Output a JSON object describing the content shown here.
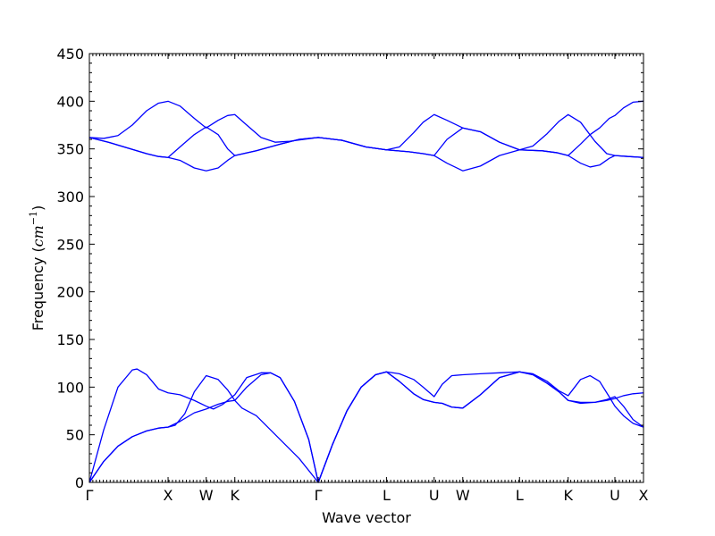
{
  "chart_data": {
    "type": "line",
    "title": "",
    "xlabel": "Wave vector",
    "ylabel": "Frequency ($cm^{-1}$)",
    "ylabel_parts": {
      "text": "Frequency (",
      "math": "cm",
      "sup": "−1",
      "close": ")"
    },
    "ylim": [
      0,
      450
    ],
    "yticks": [
      0,
      50,
      100,
      150,
      200,
      250,
      300,
      350,
      400,
      450
    ],
    "xlim": [
      0,
      11.62
    ],
    "kpoints": [
      {
        "label": "Γ",
        "x": 0
      },
      {
        "label": "X",
        "x": 1.65
      },
      {
        "label": "W",
        "x": 2.45
      },
      {
        "label": "K",
        "x": 3.05
      },
      {
        "label": "Γ",
        "x": 4.8
      },
      {
        "label": "L",
        "x": 6.23
      },
      {
        "label": "U",
        "x": 7.23
      },
      {
        "label": "W",
        "x": 7.83
      },
      {
        "label": "L",
        "x": 9.02
      },
      {
        "label": "K",
        "x": 10.04
      },
      {
        "label": "U",
        "x": 11.02
      },
      {
        "label": "X",
        "x": 11.62
      }
    ],
    "grid": false,
    "line_color": "#0000ff",
    "series": [
      {
        "values": [
          [
            0,
            0
          ],
          [
            0.3,
            22
          ],
          [
            0.6,
            38
          ],
          [
            0.9,
            48
          ],
          [
            1.2,
            54
          ],
          [
            1.45,
            57
          ],
          [
            1.65,
            58
          ],
          [
            1.8,
            60
          ],
          [
            2.0,
            72
          ],
          [
            2.2,
            95
          ],
          [
            2.45,
            112
          ],
          [
            2.7,
            108
          ],
          [
            2.9,
            97
          ],
          [
            3.05,
            86
          ],
          [
            3.2,
            78
          ],
          [
            3.5,
            70
          ],
          [
            3.8,
            55
          ],
          [
            4.1,
            40
          ],
          [
            4.4,
            25
          ],
          [
            4.8,
            0
          ],
          [
            5.1,
            40
          ],
          [
            5.4,
            75
          ],
          [
            5.7,
            100
          ],
          [
            6.0,
            113
          ],
          [
            6.23,
            116
          ],
          [
            6.5,
            114
          ],
          [
            6.8,
            108
          ],
          [
            7.0,
            100
          ],
          [
            7.23,
            90
          ],
          [
            7.4,
            103
          ],
          [
            7.6,
            112
          ],
          [
            7.83,
            113
          ],
          [
            8.2,
            114
          ],
          [
            8.6,
            115
          ],
          [
            9.02,
            116
          ],
          [
            9.3,
            113
          ],
          [
            9.6,
            104
          ],
          [
            9.85,
            95
          ],
          [
            10.04,
            86
          ],
          [
            10.3,
            83
          ],
          [
            10.6,
            84
          ],
          [
            10.85,
            86
          ],
          [
            11.02,
            88
          ],
          [
            11.2,
            91
          ],
          [
            11.4,
            93
          ],
          [
            11.62,
            94
          ]
        ]
      },
      {
        "values": [
          [
            0,
            0
          ],
          [
            0.3,
            22
          ],
          [
            0.6,
            38
          ],
          [
            0.9,
            48
          ],
          [
            1.2,
            54
          ],
          [
            1.45,
            57
          ],
          [
            1.65,
            58
          ],
          [
            1.9,
            64
          ],
          [
            2.2,
            73
          ],
          [
            2.45,
            77
          ],
          [
            2.7,
            82
          ],
          [
            2.9,
            85
          ],
          [
            3.05,
            86
          ],
          [
            3.3,
            100
          ],
          [
            3.6,
            113
          ],
          [
            3.8,
            115
          ],
          [
            4.0,
            110
          ],
          [
            4.3,
            85
          ],
          [
            4.6,
            45
          ],
          [
            4.8,
            0
          ],
          [
            5.1,
            40
          ],
          [
            5.4,
            75
          ],
          [
            5.7,
            100
          ],
          [
            6.0,
            113
          ],
          [
            6.23,
            116
          ],
          [
            6.5,
            106
          ],
          [
            6.8,
            93
          ],
          [
            7.0,
            87
          ],
          [
            7.23,
            84
          ],
          [
            7.4,
            83
          ],
          [
            7.6,
            79
          ],
          [
            7.83,
            78
          ],
          [
            8.2,
            92
          ],
          [
            8.6,
            110
          ],
          [
            9.02,
            116
          ],
          [
            9.3,
            113
          ],
          [
            9.6,
            104
          ],
          [
            9.85,
            95
          ],
          [
            10.04,
            86
          ],
          [
            10.3,
            84
          ],
          [
            10.6,
            84
          ],
          [
            10.85,
            87
          ],
          [
            11.02,
            90
          ],
          [
            11.2,
            80
          ],
          [
            11.4,
            66
          ],
          [
            11.62,
            58
          ]
        ]
      },
      {
        "values": [
          [
            0,
            0
          ],
          [
            0.3,
            55
          ],
          [
            0.6,
            100
          ],
          [
            0.9,
            118
          ],
          [
            1.0,
            119
          ],
          [
            1.2,
            113
          ],
          [
            1.45,
            98
          ],
          [
            1.65,
            94
          ],
          [
            1.9,
            92
          ],
          [
            2.2,
            86
          ],
          [
            2.45,
            80
          ],
          [
            2.6,
            77
          ],
          [
            2.8,
            82
          ],
          [
            3.05,
            92
          ],
          [
            3.3,
            110
          ],
          [
            3.6,
            115
          ],
          [
            3.8,
            115
          ],
          [
            4.0,
            110
          ],
          [
            4.3,
            85
          ],
          [
            4.6,
            45
          ],
          [
            4.8,
            0
          ],
          [
            5.1,
            40
          ],
          [
            5.4,
            75
          ],
          [
            5.7,
            100
          ],
          [
            6.0,
            113
          ],
          [
            6.23,
            116
          ],
          [
            6.5,
            106
          ],
          [
            6.8,
            93
          ],
          [
            7.0,
            87
          ],
          [
            7.23,
            84
          ],
          [
            7.4,
            83
          ],
          [
            7.6,
            79
          ],
          [
            7.83,
            78
          ],
          [
            8.2,
            92
          ],
          [
            8.6,
            110
          ],
          [
            9.02,
            116
          ],
          [
            9.3,
            114
          ],
          [
            9.6,
            106
          ],
          [
            9.85,
            96
          ],
          [
            10.04,
            91
          ],
          [
            10.3,
            108
          ],
          [
            10.5,
            112
          ],
          [
            10.7,
            106
          ],
          [
            10.9,
            90
          ],
          [
            11.02,
            80
          ],
          [
            11.2,
            70
          ],
          [
            11.4,
            62
          ],
          [
            11.62,
            58
          ]
        ]
      },
      {
        "values": [
          [
            0,
            362
          ],
          [
            0.4,
            357
          ],
          [
            0.8,
            351
          ],
          [
            1.2,
            345
          ],
          [
            1.45,
            342
          ],
          [
            1.65,
            341
          ],
          [
            1.9,
            338
          ],
          [
            2.2,
            330
          ],
          [
            2.45,
            327
          ],
          [
            2.7,
            330
          ],
          [
            2.9,
            338
          ],
          [
            3.05,
            343
          ],
          [
            3.5,
            348
          ],
          [
            4.0,
            355
          ],
          [
            4.4,
            360
          ],
          [
            4.8,
            362
          ],
          [
            5.3,
            359
          ],
          [
            5.8,
            352
          ],
          [
            6.23,
            349
          ],
          [
            6.7,
            347
          ],
          [
            7.0,
            345
          ],
          [
            7.23,
            343
          ],
          [
            7.5,
            335
          ],
          [
            7.83,
            327
          ],
          [
            8.2,
            332
          ],
          [
            8.6,
            343
          ],
          [
            9.02,
            349
          ],
          [
            9.5,
            348
          ],
          [
            9.8,
            346
          ],
          [
            10.04,
            343
          ],
          [
            10.3,
            335
          ],
          [
            10.5,
            331
          ],
          [
            10.7,
            333
          ],
          [
            10.9,
            340
          ],
          [
            11.02,
            343
          ],
          [
            11.3,
            342
          ],
          [
            11.62,
            341
          ]
        ]
      },
      {
        "values": [
          [
            0,
            362
          ],
          [
            0.4,
            357
          ],
          [
            0.8,
            351
          ],
          [
            1.2,
            345
          ],
          [
            1.45,
            342
          ],
          [
            1.65,
            341
          ],
          [
            1.9,
            352
          ],
          [
            2.2,
            365
          ],
          [
            2.45,
            373
          ],
          [
            2.7,
            365
          ],
          [
            2.9,
            350
          ],
          [
            3.05,
            343
          ],
          [
            3.5,
            348
          ],
          [
            4.0,
            355
          ],
          [
            4.4,
            360
          ],
          [
            4.8,
            362
          ],
          [
            5.3,
            359
          ],
          [
            5.8,
            352
          ],
          [
            6.23,
            349
          ],
          [
            6.7,
            347
          ],
          [
            7.0,
            345
          ],
          [
            7.23,
            343
          ],
          [
            7.5,
            360
          ],
          [
            7.83,
            372
          ],
          [
            8.2,
            368
          ],
          [
            8.6,
            357
          ],
          [
            9.02,
            349
          ],
          [
            9.5,
            348
          ],
          [
            9.8,
            346
          ],
          [
            10.04,
            343
          ],
          [
            10.3,
            355
          ],
          [
            10.5,
            365
          ],
          [
            10.7,
            372
          ],
          [
            10.9,
            382
          ],
          [
            11.02,
            385
          ],
          [
            11.2,
            393
          ],
          [
            11.4,
            399
          ],
          [
            11.62,
            400
          ]
        ]
      },
      {
        "values": [
          [
            0,
            362
          ],
          [
            0.3,
            361
          ],
          [
            0.6,
            364
          ],
          [
            0.9,
            375
          ],
          [
            1.2,
            390
          ],
          [
            1.45,
            398
          ],
          [
            1.65,
            400
          ],
          [
            1.9,
            395
          ],
          [
            2.2,
            382
          ],
          [
            2.45,
            372
          ],
          [
            2.7,
            380
          ],
          [
            2.9,
            385
          ],
          [
            3.05,
            386
          ],
          [
            3.3,
            375
          ],
          [
            3.6,
            362
          ],
          [
            3.9,
            357
          ],
          [
            4.2,
            358
          ],
          [
            4.5,
            360
          ],
          [
            4.8,
            362
          ],
          [
            5.3,
            359
          ],
          [
            5.8,
            352
          ],
          [
            6.23,
            349
          ],
          [
            6.5,
            352
          ],
          [
            6.8,
            367
          ],
          [
            7.0,
            378
          ],
          [
            7.23,
            386
          ],
          [
            7.5,
            380
          ],
          [
            7.83,
            372
          ],
          [
            8.2,
            368
          ],
          [
            8.6,
            357
          ],
          [
            9.02,
            349
          ],
          [
            9.3,
            353
          ],
          [
            9.6,
            366
          ],
          [
            9.85,
            379
          ],
          [
            10.04,
            386
          ],
          [
            10.3,
            378
          ],
          [
            10.6,
            358
          ],
          [
            10.85,
            345
          ],
          [
            11.02,
            343
          ],
          [
            11.3,
            342
          ],
          [
            11.62,
            341
          ]
        ]
      }
    ]
  }
}
